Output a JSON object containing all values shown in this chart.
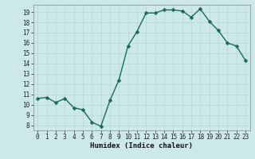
{
  "x": [
    0,
    1,
    2,
    3,
    4,
    5,
    6,
    7,
    8,
    9,
    10,
    11,
    12,
    13,
    14,
    15,
    16,
    17,
    18,
    19,
    20,
    21,
    22,
    23
  ],
  "y": [
    10.6,
    10.7,
    10.2,
    10.6,
    9.7,
    9.5,
    8.3,
    7.9,
    10.4,
    12.4,
    15.7,
    17.1,
    18.9,
    18.9,
    19.2,
    19.2,
    19.1,
    18.5,
    19.3,
    18.1,
    17.2,
    16.0,
    15.7,
    14.3
  ],
  "xlabel": "Humidex (Indice chaleur)",
  "ylabel": "",
  "xlim": [
    -0.5,
    23.5
  ],
  "ylim": [
    7.5,
    19.7
  ],
  "yticks": [
    8,
    9,
    10,
    11,
    12,
    13,
    14,
    15,
    16,
    17,
    18,
    19
  ],
  "xticks": [
    0,
    1,
    2,
    3,
    4,
    5,
    6,
    7,
    8,
    9,
    10,
    11,
    12,
    13,
    14,
    15,
    16,
    17,
    18,
    19,
    20,
    21,
    22,
    23
  ],
  "line_color": "#1a6b5a",
  "bg_color": "#cce8e8",
  "grid_color_major": "#b8d4d4",
  "grid_color_minor": "#d4e8e8",
  "marker": "D",
  "marker_size": 2.5,
  "line_width": 1.0,
  "tick_labelsize": 5.5,
  "xlabel_fontsize": 6.5,
  "xlabel_fontweight": "bold"
}
